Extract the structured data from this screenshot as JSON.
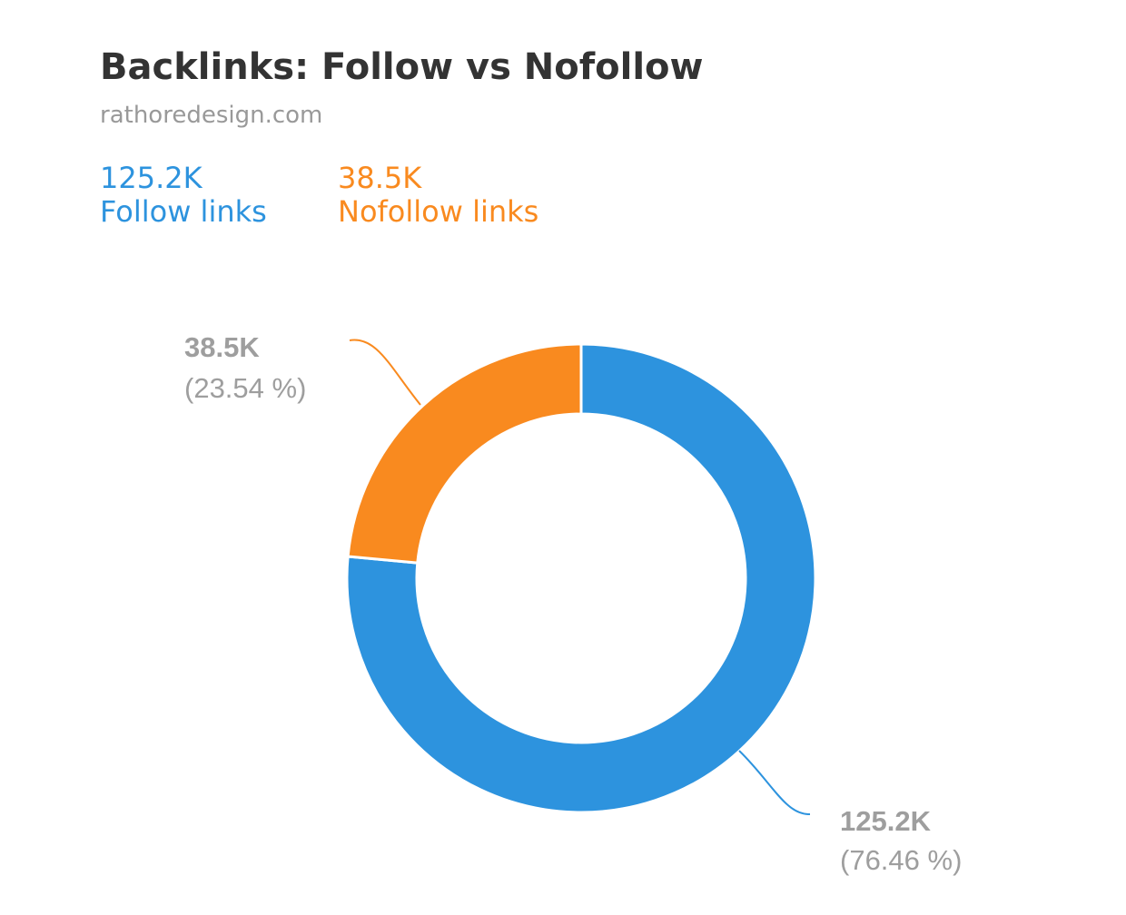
{
  "chart_data": {
    "type": "pie",
    "title": "Backlinks: Follow vs Nofollow",
    "subtitle": "rathoredesign.com",
    "legend_position": "top-left",
    "series": [
      {
        "name": "Follow links",
        "value": 125.2,
        "value_label": "125.2K",
        "percent": 76.46,
        "percent_label": "(76.46 %)",
        "color": "#2d93de"
      },
      {
        "name": "Nofollow links",
        "value": 38.5,
        "value_label": "38.5K",
        "percent": 23.54,
        "percent_label": "(23.54 %)",
        "color": "#f98a1f"
      }
    ]
  }
}
